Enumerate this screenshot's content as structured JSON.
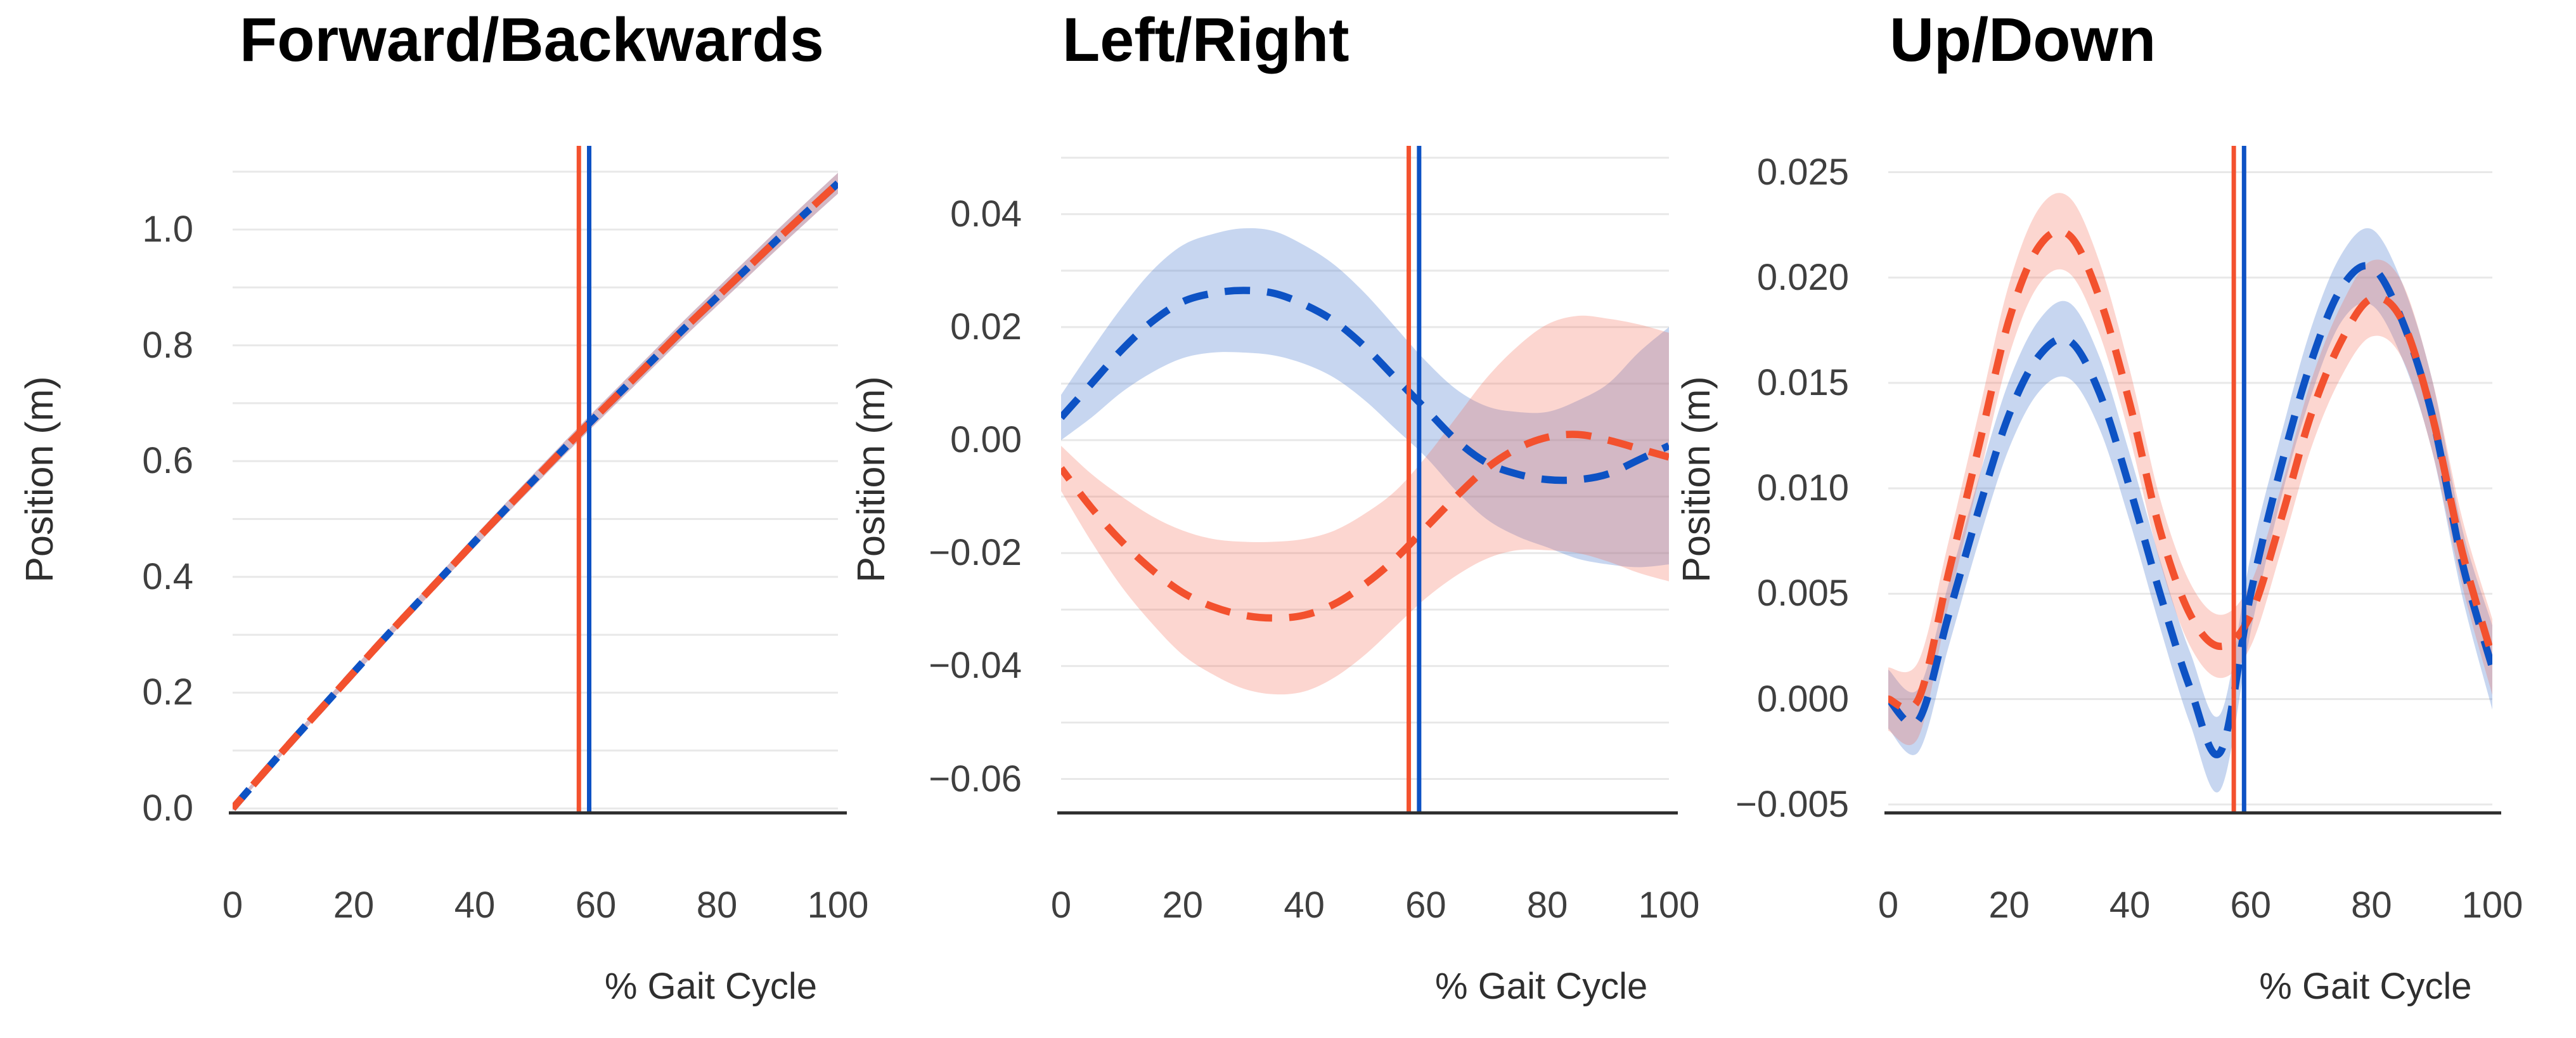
{
  "figure": {
    "background": "#ffffff",
    "grid_color": "#e8e8e8",
    "axis_color": "#2d2d2d",
    "tick_color": "#3f3f3f",
    "title_color": "#000000",
    "blue": "#0d52c4",
    "red": "#f3512e",
    "blue_band": "rgba(68,120,205,0.30)",
    "red_band": "rgba(246,108,85,0.28)"
  },
  "chart_data": [
    {
      "type": "line",
      "title": "Forward/Backwards",
      "xlabel": "% Gait Cycle",
      "ylabel": "Position (m)",
      "x": [
        0,
        5,
        10,
        15,
        20,
        25,
        30,
        35,
        40,
        45,
        50,
        55,
        60,
        65,
        70,
        75,
        80,
        85,
        90,
        95,
        100
      ],
      "xticks": [
        0,
        20,
        40,
        60,
        80,
        100
      ],
      "xtick_labels": [
        "0",
        "20",
        "40",
        "60",
        "80",
        "100"
      ],
      "ytick_values": [
        0.0,
        0.2,
        0.4,
        0.6,
        0.8,
        1.0
      ],
      "ytick_labels": [
        "0.0",
        "0.2",
        "0.4",
        "0.6",
        "0.8",
        "1.0"
      ],
      "grid_values": [
        0.0,
        0.1,
        0.2,
        0.3,
        0.4,
        0.5,
        0.6,
        0.7,
        0.8,
        0.9,
        1.0,
        1.1
      ],
      "ylim": [
        -0.0077,
        1.1446
      ],
      "xlim": [
        0,
        100
      ],
      "legend": "none",
      "grid": true,
      "event_lines": [
        {
          "name": "red-event-line",
          "x": 57.2,
          "color": "#f3512e"
        },
        {
          "name": "blue-event-line",
          "x": 58.9,
          "color": "#0d52c4"
        }
      ],
      "series": [
        {
          "name": "blue-dashed",
          "color": "#0d52c4",
          "band_color": "rgba(68,120,205,0.30)",
          "y": [
            0.0,
            0.06,
            0.119,
            0.177,
            0.235,
            0.293,
            0.349,
            0.405,
            0.461,
            0.516,
            0.57,
            0.624,
            0.677,
            0.729,
            0.781,
            0.833,
            0.883,
            0.933,
            0.983,
            1.032,
            1.08
          ],
          "band_lo": [
            -0.004,
            0.0553,
            0.1136,
            0.1709,
            0.2282,
            0.2855,
            0.3408,
            0.3961,
            0.4514,
            0.5057,
            0.559,
            0.6123,
            0.6646,
            0.7159,
            0.7672,
            0.8185,
            0.8678,
            0.9171,
            0.9664,
            1.0147,
            1.062
          ],
          "band_hi": [
            0.004,
            0.0647,
            0.1244,
            0.1831,
            0.2418,
            0.3005,
            0.3572,
            0.4139,
            0.4706,
            0.5263,
            0.581,
            0.6357,
            0.6894,
            0.7421,
            0.7948,
            0.8475,
            0.8982,
            0.9489,
            0.9996,
            1.0493,
            1.098
          ]
        },
        {
          "name": "red-dashed",
          "color": "#f3512e",
          "band_color": "rgba(246,108,85,0.28)",
          "y": [
            0.0,
            0.06,
            0.119,
            0.177,
            0.235,
            0.293,
            0.349,
            0.405,
            0.461,
            0.516,
            0.57,
            0.624,
            0.677,
            0.729,
            0.781,
            0.833,
            0.883,
            0.933,
            0.983,
            1.032,
            1.08
          ],
          "band_lo": [
            -0.004,
            0.0553,
            0.1136,
            0.1709,
            0.2282,
            0.2855,
            0.3408,
            0.3961,
            0.4514,
            0.5057,
            0.559,
            0.6123,
            0.6646,
            0.7159,
            0.7672,
            0.8185,
            0.8678,
            0.9171,
            0.9664,
            1.0147,
            1.062
          ],
          "band_hi": [
            0.004,
            0.0647,
            0.1244,
            0.1831,
            0.2418,
            0.3005,
            0.3572,
            0.4139,
            0.4706,
            0.5263,
            0.581,
            0.6357,
            0.6894,
            0.7421,
            0.7948,
            0.8475,
            0.8982,
            0.9489,
            0.9996,
            1.0493,
            1.098
          ]
        }
      ]
    },
    {
      "type": "line",
      "title": "Left/Right",
      "xlabel": "% Gait Cycle",
      "ylabel": "Position (m)",
      "x": [
        0,
        5,
        10,
        15,
        20,
        25,
        30,
        35,
        40,
        45,
        50,
        55,
        60,
        65,
        70,
        75,
        80,
        85,
        90,
        95,
        100
      ],
      "xticks": [
        0,
        20,
        40,
        60,
        80,
        100
      ],
      "xtick_labels": [
        "0",
        "20",
        "40",
        "60",
        "80",
        "100"
      ],
      "ytick_values": [
        0.04,
        0.02,
        0.0,
        -0.02,
        -0.04,
        -0.06
      ],
      "ytick_labels": [
        "0.04",
        "0.02",
        "0.00",
        "−0.02",
        "−0.04",
        "−0.06"
      ],
      "grid_values": [
        -0.06,
        -0.05,
        -0.04,
        -0.03,
        -0.02,
        -0.01,
        0.0,
        0.01,
        0.02,
        0.03,
        0.04,
        0.05
      ],
      "ylim": [
        -0.066,
        0.0521
      ],
      "xlim": [
        0,
        100
      ],
      "legend": "none",
      "grid": true,
      "event_lines": [
        {
          "name": "red-event-line",
          "x": 57.2,
          "color": "#f3512e"
        },
        {
          "name": "blue-event-line",
          "x": 58.9,
          "color": "#0d52c4"
        }
      ],
      "series": [
        {
          "name": "blue-dashed",
          "color": "#0d52c4",
          "band_color": "rgba(68,120,205,0.30)",
          "y": [
            0.004,
            0.01,
            0.016,
            0.021,
            0.0245,
            0.026,
            0.0265,
            0.026,
            0.024,
            0.021,
            0.0165,
            0.011,
            0.0055,
            0.0,
            -0.004,
            -0.006,
            -0.007,
            -0.007,
            -0.006,
            -0.0035,
            -0.001
          ],
          "band_lo": [
            0.0,
            0.004,
            0.0085,
            0.012,
            0.0145,
            0.0155,
            0.0155,
            0.015,
            0.0135,
            0.011,
            0.007,
            0.002,
            -0.003,
            -0.009,
            -0.014,
            -0.017,
            -0.019,
            -0.021,
            -0.022,
            -0.0225,
            -0.022
          ],
          "band_hi": [
            0.008,
            0.016,
            0.0235,
            0.03,
            0.0345,
            0.0365,
            0.0375,
            0.037,
            0.0345,
            0.031,
            0.026,
            0.02,
            0.014,
            0.009,
            0.006,
            0.005,
            0.005,
            0.007,
            0.01,
            0.0155,
            0.02
          ]
        },
        {
          "name": "red-dashed",
          "color": "#f3512e",
          "band_color": "rgba(246,108,85,0.28)",
          "y": [
            -0.005,
            -0.012,
            -0.018,
            -0.023,
            -0.027,
            -0.0295,
            -0.031,
            -0.0315,
            -0.031,
            -0.029,
            -0.0255,
            -0.021,
            -0.0155,
            -0.01,
            -0.005,
            -0.0015,
            0.0005,
            0.001,
            0.0,
            -0.0015,
            -0.003
          ],
          "band_lo": [
            -0.009,
            -0.018,
            -0.026,
            -0.0325,
            -0.038,
            -0.0415,
            -0.044,
            -0.045,
            -0.0445,
            -0.042,
            -0.038,
            -0.033,
            -0.028,
            -0.024,
            -0.021,
            -0.0195,
            -0.0195,
            -0.02,
            -0.0215,
            -0.0235,
            -0.025
          ],
          "band_hi": [
            -0.001,
            -0.006,
            -0.01,
            -0.0135,
            -0.016,
            -0.0175,
            -0.018,
            -0.018,
            -0.0175,
            -0.016,
            -0.013,
            -0.009,
            -0.003,
            0.004,
            0.011,
            0.0165,
            0.0205,
            0.022,
            0.0215,
            0.0205,
            0.019
          ]
        }
      ]
    },
    {
      "type": "line",
      "title": "Up/Down",
      "xlabel": "% Gait Cycle",
      "ylabel": "Position (m)",
      "x": [
        0,
        5,
        10,
        15,
        20,
        25,
        30,
        35,
        40,
        45,
        50,
        55,
        60,
        65,
        70,
        75,
        80,
        85,
        90,
        95,
        100
      ],
      "xticks": [
        0,
        20,
        40,
        60,
        80,
        100
      ],
      "xtick_labels": [
        "0",
        "20",
        "40",
        "60",
        "80",
        "100"
      ],
      "ytick_values": [
        0.025,
        0.02,
        0.015,
        0.01,
        0.005,
        0.0,
        -0.005
      ],
      "ytick_labels": [
        "0.025",
        "0.020",
        "0.015",
        "0.010",
        "0.005",
        "0.000",
        "−0.005"
      ],
      "grid_values": [
        -0.005,
        0.0,
        0.005,
        0.01,
        0.015,
        0.02,
        0.025
      ],
      "ylim": [
        -0.0054,
        0.02625
      ],
      "xlim": [
        0,
        100
      ],
      "legend": "none",
      "grid": true,
      "event_lines": [
        {
          "name": "red-event-line",
          "x": 57.2,
          "color": "#f3512e"
        },
        {
          "name": "blue-event-line",
          "x": 58.9,
          "color": "#0d52c4"
        }
      ],
      "series": [
        {
          "name": "blue-dashed",
          "color": "#0d52c4",
          "band_color": "rgba(68,120,205,0.30)",
          "y": [
            0.0,
            -0.001,
            0.004,
            0.009,
            0.0135,
            0.0163,
            0.017,
            0.0145,
            0.01,
            0.005,
            0.0005,
            -0.0025,
            0.005,
            0.011,
            0.016,
            0.0195,
            0.0205,
            0.018,
            0.0135,
            0.0065,
            0.0015
          ],
          "band_lo": [
            -0.0014,
            -0.0025,
            0.0025,
            0.0075,
            0.0119,
            0.0146,
            0.0152,
            0.0128,
            0.0084,
            0.0034,
            -0.0012,
            -0.0043,
            0.0032,
            0.0095,
            0.0144,
            0.0179,
            0.0187,
            0.0162,
            0.0118,
            0.0049,
            -0.0005
          ],
          "band_hi": [
            0.0014,
            0.0005,
            0.0055,
            0.0105,
            0.0151,
            0.018,
            0.0188,
            0.0162,
            0.0116,
            0.0066,
            0.0022,
            -0.0007,
            0.0068,
            0.0125,
            0.0176,
            0.0211,
            0.0223,
            0.0198,
            0.0152,
            0.0081,
            0.0035
          ]
        },
        {
          "name": "red-dashed",
          "color": "#f3512e",
          "band_color": "rgba(246,108,85,0.28)",
          "y": [
            0.0,
            0.0,
            0.006,
            0.012,
            0.018,
            0.0215,
            0.022,
            0.019,
            0.014,
            0.008,
            0.004,
            0.0025,
            0.004,
            0.0085,
            0.0135,
            0.017,
            0.019,
            0.018,
            0.0135,
            0.007,
            0.002
          ],
          "band_lo": [
            -0.0015,
            -0.0018,
            0.0045,
            0.0104,
            0.0163,
            0.0197,
            0.0202,
            0.0173,
            0.0124,
            0.0065,
            0.0025,
            0.001,
            0.0025,
            0.007,
            0.0119,
            0.0153,
            0.0172,
            0.0162,
            0.0118,
            0.0054,
            0.0002
          ],
          "band_hi": [
            0.0015,
            0.0018,
            0.0075,
            0.0136,
            0.0197,
            0.0233,
            0.0238,
            0.0207,
            0.0156,
            0.0095,
            0.0055,
            0.004,
            0.0055,
            0.01,
            0.0151,
            0.0187,
            0.0208,
            0.0198,
            0.0152,
            0.0086,
            0.0038
          ]
        }
      ]
    }
  ]
}
